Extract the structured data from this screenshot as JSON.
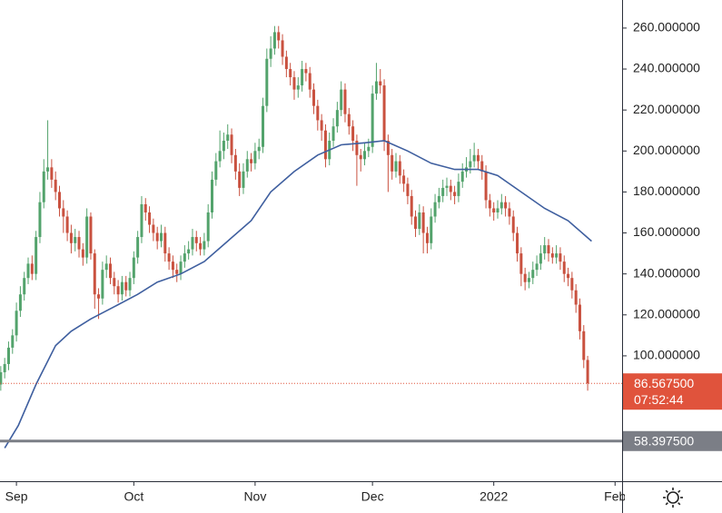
{
  "chart_data": {
    "type": "candlestick",
    "categories": [
      null,
      null,
      null,
      null,
      null,
      null,
      null,
      null,
      null,
      null,
      null,
      null,
      null,
      null,
      null,
      null,
      null,
      null,
      null,
      null,
      null,
      null,
      null,
      null,
      null,
      null,
      null,
      null,
      null,
      null,
      null,
      null,
      null,
      null,
      null,
      null,
      null,
      null,
      null,
      null,
      null,
      null,
      null,
      null,
      null,
      null,
      null,
      null,
      null,
      null,
      null,
      null,
      null,
      null,
      null,
      null,
      null,
      null,
      null,
      null,
      null,
      null,
      null,
      null,
      null,
      null,
      null,
      null,
      null,
      null,
      null,
      null,
      null,
      null,
      null,
      null,
      null,
      null,
      null,
      null,
      null,
      null,
      null,
      null,
      null,
      null,
      null,
      null,
      null,
      null,
      null,
      null,
      null,
      null,
      null,
      null,
      null,
      null,
      null,
      null,
      null,
      null,
      null,
      null,
      null,
      null,
      null,
      null,
      null,
      null,
      null,
      null,
      null,
      null,
      null,
      null,
      null,
      null,
      null,
      null,
      null,
      null,
      null,
      null,
      null,
      null,
      null,
      null,
      null,
      null,
      null,
      null,
      null,
      null,
      null,
      null,
      null,
      null,
      null,
      null,
      null,
      null,
      null,
      null,
      null,
      null,
      null,
      null,
      null,
      null,
      null
    ],
    "open": [
      86,
      92,
      96,
      104,
      110,
      122,
      130,
      138,
      145,
      140,
      158,
      175,
      190,
      192,
      186,
      180,
      172,
      168,
      160,
      155,
      158,
      152,
      148,
      168,
      150,
      130,
      128,
      142,
      145,
      138,
      134,
      130,
      136,
      132,
      138,
      148,
      158,
      174,
      170,
      164,
      160,
      156,
      160,
      150,
      146,
      142,
      140,
      146,
      150,
      152,
      158,
      155,
      152,
      156,
      170,
      186,
      195,
      200,
      205,
      208,
      198,
      190,
      182,
      190,
      196,
      194,
      200,
      202,
      222,
      245,
      250,
      258,
      254,
      246,
      240,
      236,
      230,
      232,
      240,
      238,
      230,
      222,
      215,
      210,
      196,
      205,
      212,
      220,
      230,
      218,
      212,
      205,
      198,
      196,
      200,
      202,
      228,
      234,
      232,
      205,
      198,
      190,
      195,
      188,
      184,
      178,
      168,
      162,
      170,
      160,
      155,
      168,
      175,
      178,
      182,
      183,
      180,
      178,
      185,
      190,
      192,
      195,
      198,
      195,
      190,
      176,
      172,
      170,
      172,
      175,
      172,
      168,
      160,
      150,
      140,
      136,
      138,
      142,
      145,
      150,
      154,
      150,
      148,
      150,
      146,
      140,
      138,
      132,
      125,
      112,
      98
    ],
    "high": [
      95,
      99,
      107,
      113,
      126,
      134,
      141,
      148,
      149,
      161,
      180,
      196,
      215,
      196,
      190,
      183,
      176,
      171,
      164,
      162,
      161,
      155,
      172,
      170,
      152,
      133,
      146,
      149,
      148,
      141,
      137,
      139,
      139,
      141,
      151,
      161,
      178,
      177,
      173,
      167,
      163,
      164,
      163,
      153,
      149,
      145,
      149,
      154,
      156,
      162,
      161,
      158,
      160,
      174,
      190,
      199,
      210,
      209,
      213,
      211,
      201,
      194,
      194,
      200,
      199,
      204,
      206,
      226,
      250,
      256,
      261,
      261,
      257,
      249,
      243,
      239,
      236,
      244,
      243,
      241,
      233,
      225,
      218,
      213,
      209,
      216,
      224,
      234,
      233,
      221,
      215,
      208,
      201,
      204,
      206,
      232,
      243,
      240,
      235,
      208,
      201,
      199,
      198,
      191,
      187,
      181,
      171,
      174,
      173,
      163,
      172,
      179,
      182,
      186,
      187,
      186,
      183,
      189,
      194,
      197,
      201,
      204,
      201,
      198,
      193,
      179,
      175,
      176,
      179,
      178,
      175,
      171,
      163,
      153,
      143,
      141,
      146,
      149,
      154,
      158,
      157,
      153,
      154,
      153,
      149,
      143,
      141,
      135,
      128,
      115,
      100
    ],
    "low": [
      83,
      89,
      93,
      101,
      107,
      119,
      127,
      135,
      137,
      137,
      155,
      172,
      186,
      182,
      176,
      168,
      160,
      156,
      150,
      151,
      148,
      144,
      145,
      147,
      123,
      118,
      125,
      138,
      135,
      130,
      126,
      127,
      129,
      129,
      135,
      145,
      155,
      166,
      160,
      156,
      152,
      153,
      146,
      142,
      138,
      136,
      137,
      143,
      147,
      149,
      151,
      149,
      149,
      153,
      167,
      183,
      192,
      196,
      201,
      194,
      186,
      178,
      179,
      187,
      190,
      191,
      196,
      199,
      219,
      241,
      247,
      250,
      242,
      236,
      232,
      225,
      226,
      229,
      234,
      226,
      218,
      210,
      205,
      192,
      193,
      202,
      209,
      217,
      214,
      208,
      200,
      183,
      190,
      193,
      197,
      199,
      225,
      228,
      200,
      180,
      186,
      187,
      184,
      180,
      174,
      164,
      158,
      159,
      150,
      150,
      152,
      165,
      172,
      175,
      178,
      176,
      174,
      175,
      182,
      187,
      189,
      192,
      191,
      186,
      172,
      168,
      166,
      167,
      169,
      168,
      164,
      156,
      146,
      134,
      132,
      133,
      135,
      139,
      142,
      147,
      146,
      145,
      145,
      142,
      136,
      134,
      128,
      121,
      108,
      94,
      83
    ],
    "close": [
      92,
      96,
      104,
      110,
      122,
      130,
      138,
      145,
      140,
      158,
      175,
      190,
      192,
      186,
      180,
      172,
      168,
      160,
      155,
      158,
      152,
      148,
      168,
      150,
      130,
      128,
      142,
      145,
      138,
      134,
      130,
      136,
      132,
      138,
      148,
      158,
      174,
      170,
      164,
      160,
      156,
      160,
      150,
      146,
      142,
      140,
      146,
      150,
      152,
      158,
      155,
      152,
      156,
      170,
      186,
      195,
      200,
      205,
      208,
      198,
      190,
      182,
      190,
      196,
      194,
      200,
      202,
      222,
      245,
      250,
      258,
      254,
      246,
      240,
      236,
      230,
      232,
      240,
      238,
      230,
      222,
      215,
      210,
      196,
      205,
      212,
      220,
      230,
      218,
      212,
      205,
      198,
      196,
      200,
      202,
      228,
      234,
      232,
      205,
      198,
      190,
      195,
      188,
      184,
      178,
      168,
      162,
      170,
      160,
      155,
      168,
      175,
      178,
      182,
      183,
      180,
      178,
      185,
      190,
      192,
      195,
      198,
      195,
      190,
      176,
      172,
      170,
      172,
      175,
      172,
      168,
      160,
      150,
      140,
      136,
      138,
      142,
      145,
      150,
      154,
      150,
      148,
      150,
      146,
      140,
      138,
      132,
      125,
      112,
      98,
      86.5675
    ],
    "up_color": "#53a36c",
    "down_color": "#c9513f",
    "moving_average": {
      "color": "#3f5f9f",
      "x": [
        1,
        4.5,
        9,
        14,
        18,
        23,
        29,
        35,
        40,
        46,
        52,
        58,
        64,
        69,
        75,
        81,
        87,
        93,
        98,
        104,
        110,
        116,
        122,
        127,
        133,
        139,
        145,
        151
      ],
      "values": [
        55,
        66,
        86,
        105,
        112,
        118,
        124,
        130,
        136,
        140,
        146,
        156,
        166,
        180,
        190,
        198,
        203,
        204,
        205,
        200,
        194,
        191,
        191,
        188,
        180,
        172,
        166,
        156
      ]
    },
    "xlim": [
      -0.2,
      158.8
    ],
    "xticks": [
      {
        "value": 4,
        "label": "Sep"
      },
      {
        "value": 34,
        "label": "Oct"
      },
      {
        "value": 65,
        "label": "Nov"
      },
      {
        "value": 95,
        "label": "Dec"
      },
      {
        "value": 126,
        "label": "2022"
      },
      {
        "value": 157,
        "label": "Feb"
      }
    ],
    "ylim": [
      38.8,
      273.7
    ],
    "yticks": [
      {
        "value": 260,
        "label": "260.000000"
      },
      {
        "value": 240,
        "label": "240.000000"
      },
      {
        "value": 220,
        "label": "220.000000"
      },
      {
        "value": 200,
        "label": "200.000000"
      },
      {
        "value": 180,
        "label": "180.000000"
      },
      {
        "value": 160,
        "label": "160.000000"
      },
      {
        "value": 140,
        "label": "140.000000"
      },
      {
        "value": 120,
        "label": "120.000000"
      },
      {
        "value": 100,
        "label": "100.000000"
      }
    ],
    "last_price": {
      "value": 86.5675,
      "label": "86.567500",
      "color": "#e0533c"
    },
    "countdown": "07:52:44",
    "horizontal_line": {
      "value": 58.3975,
      "label": "58.397500",
      "color": "#7b7e86"
    }
  }
}
